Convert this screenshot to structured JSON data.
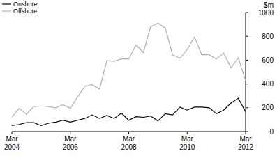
{
  "chart_data": {
    "type": "line",
    "y_label": "$m",
    "categories": [
      "Mar 2004",
      null,
      null,
      null,
      null,
      null,
      null,
      null,
      "Mar 2006",
      null,
      null,
      null,
      null,
      null,
      null,
      null,
      "Mar 2008",
      null,
      null,
      null,
      null,
      null,
      null,
      null,
      "Mar 2010",
      null,
      null,
      null,
      null,
      null,
      null,
      null,
      "Mar 2012"
    ],
    "series": [
      {
        "name": "Onshore",
        "color": "#000000",
        "values": [
          50,
          60,
          75,
          75,
          50,
          70,
          80,
          95,
          80,
          95,
          110,
          140,
          110,
          135,
          110,
          155,
          95,
          125,
          120,
          130,
          90,
          150,
          140,
          205,
          180,
          205,
          205,
          200,
          150,
          180,
          240,
          280,
          165
        ]
      },
      {
        "name": "Offshore",
        "color": "#b0b0b0",
        "values": [
          120,
          195,
          145,
          210,
          215,
          210,
          200,
          225,
          195,
          290,
          380,
          395,
          355,
          595,
          590,
          610,
          610,
          730,
          665,
          880,
          910,
          870,
          645,
          615,
          690,
          795,
          645,
          645,
          610,
          660,
          535,
          620,
          425
        ]
      }
    ],
    "ylim": [
      0,
      1000
    ],
    "yticks": [
      0,
      200,
      400,
      600,
      800,
      1000
    ],
    "grid": false,
    "legend": "top-left"
  }
}
